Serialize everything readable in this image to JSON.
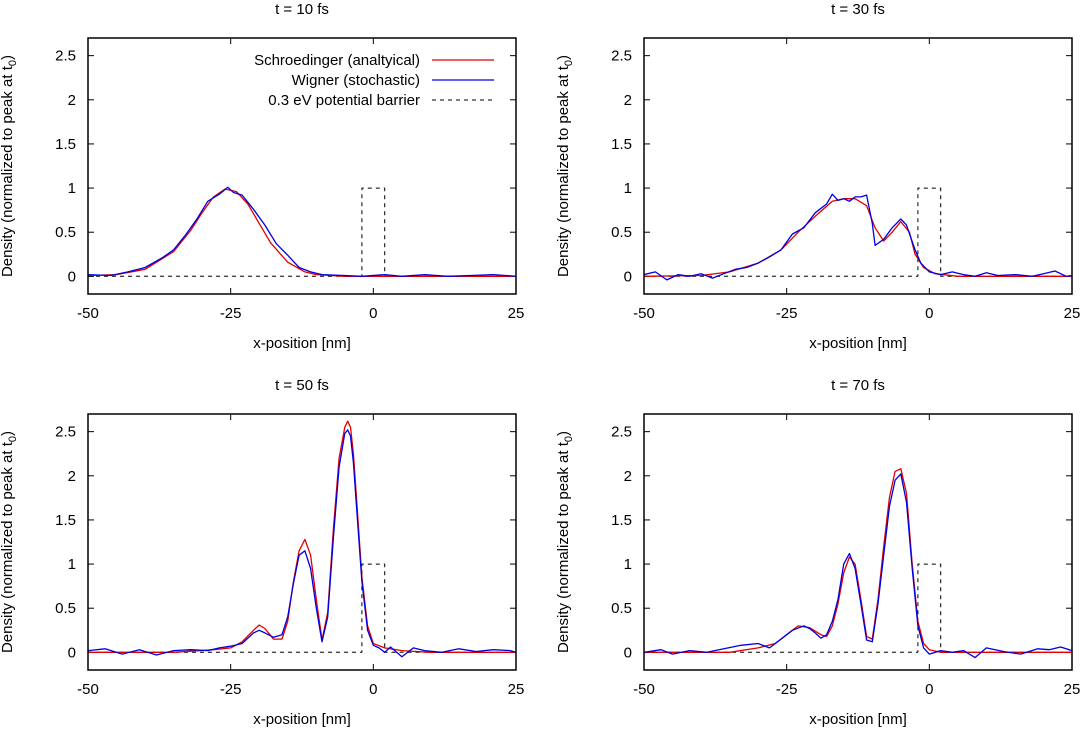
{
  "figure": {
    "xlabel": "x-position [nm]",
    "ylabel": "Density (normalized to peak at t",
    "ylabel_sub": "0",
    "ylabel_close": ")"
  },
  "colors": {
    "schroedinger": "#e00000",
    "wigner": "#0000e0",
    "barrier": "#000000",
    "axes": "#000000"
  },
  "chart_data": [
    {
      "type": "line",
      "title": "t = 10 fs",
      "xlabel": "x-position [nm]",
      "ylabel": "Density (normalized to peak at t0)",
      "xlim": [
        -50,
        25
      ],
      "ylim": [
        -0.2,
        2.7
      ],
      "xticks": [
        -50,
        -25,
        0,
        25
      ],
      "yticks": [
        0,
        0.5,
        1,
        1.5,
        2,
        2.5
      ],
      "grid": false,
      "legend_position": "top-right",
      "series": [
        {
          "name": "Schroedinger (analtyical)",
          "style": "solid",
          "x": [
            -50,
            -45,
            -40,
            -35,
            -32,
            -30,
            -28,
            -26,
            -24,
            -22,
            -20,
            -18,
            -15,
            -12,
            -10,
            -5,
            0,
            25
          ],
          "y": [
            0.01,
            0.02,
            0.08,
            0.28,
            0.52,
            0.72,
            0.9,
            0.99,
            0.96,
            0.82,
            0.6,
            0.38,
            0.16,
            0.05,
            0.02,
            0.0,
            0.0,
            0.0
          ]
        },
        {
          "name": "Wigner (stochastic)",
          "style": "solid",
          "x": [
            -50,
            -46,
            -43,
            -40,
            -37,
            -35,
            -33,
            -31,
            -29,
            -27,
            -25.5,
            -24.5,
            -23,
            -21,
            -19,
            -17,
            -15,
            -13,
            -11,
            -9,
            -5,
            -2,
            2,
            5,
            9,
            13,
            17,
            21,
            25
          ],
          "y": [
            0.02,
            0.01,
            0.05,
            0.1,
            0.21,
            0.3,
            0.46,
            0.64,
            0.85,
            0.93,
            1.01,
            0.95,
            0.92,
            0.76,
            0.58,
            0.37,
            0.24,
            0.1,
            0.05,
            0.02,
            0.01,
            0.0,
            0.02,
            0.0,
            0.02,
            0.0,
            0.01,
            0.02,
            0.0
          ]
        },
        {
          "name": "0.3 eV potential barrier",
          "style": "dashed",
          "x": [
            -50,
            -2,
            -2,
            2,
            2,
            25
          ],
          "y": [
            0,
            0,
            1,
            1,
            0,
            0
          ]
        }
      ]
    },
    {
      "type": "line",
      "title": "t = 30 fs",
      "xlabel": "x-position [nm]",
      "ylabel": "Density (normalized to peak at t0)",
      "xlim": [
        -50,
        25
      ],
      "ylim": [
        -0.2,
        2.7
      ],
      "xticks": [
        -50,
        -25,
        0,
        25
      ],
      "yticks": [
        0,
        0.5,
        1,
        1.5,
        2,
        2.5
      ],
      "grid": false,
      "series": [
        {
          "name": "Schroedinger (analtyical)",
          "style": "solid",
          "x": [
            -50,
            -40,
            -35,
            -30,
            -26,
            -23,
            -20,
            -17,
            -15,
            -13,
            -11,
            -9.5,
            -8,
            -6.5,
            -5,
            -3.5,
            -2.5,
            -1,
            1,
            5,
            10,
            25
          ],
          "y": [
            0.0,
            0.01,
            0.05,
            0.15,
            0.3,
            0.5,
            0.68,
            0.85,
            0.88,
            0.88,
            0.8,
            0.55,
            0.4,
            0.5,
            0.62,
            0.5,
            0.25,
            0.1,
            0.03,
            0.0,
            0.0,
            0.0
          ]
        },
        {
          "name": "Wigner (stochastic)",
          "style": "solid",
          "x": [
            -50,
            -48,
            -46,
            -44,
            -42,
            -40,
            -38,
            -36,
            -34,
            -32,
            -30,
            -28,
            -26,
            -24,
            -22,
            -20,
            -18,
            -17,
            -16,
            -15,
            -14,
            -13,
            -12,
            -11,
            -10,
            -9.5,
            -8,
            -6.5,
            -5,
            -4,
            -2.5,
            -1.5,
            0,
            2,
            4,
            6,
            8,
            10,
            12,
            15,
            18,
            20,
            22,
            24,
            25
          ],
          "y": [
            0.02,
            0.05,
            -0.04,
            0.02,
            0.0,
            0.03,
            -0.02,
            0.03,
            0.08,
            0.1,
            0.15,
            0.22,
            0.3,
            0.48,
            0.55,
            0.72,
            0.82,
            0.93,
            0.86,
            0.88,
            0.85,
            0.9,
            0.9,
            0.92,
            0.6,
            0.35,
            0.42,
            0.55,
            0.65,
            0.58,
            0.3,
            0.15,
            0.05,
            0.02,
            0.05,
            0.02,
            0.0,
            0.04,
            0.01,
            0.02,
            0.0,
            0.03,
            0.06,
            0.0,
            0.01
          ]
        },
        {
          "name": "0.3 eV potential barrier",
          "style": "dashed",
          "x": [
            -50,
            -2,
            -2,
            2,
            2,
            25
          ],
          "y": [
            0,
            0,
            1,
            1,
            0,
            0
          ]
        }
      ]
    },
    {
      "type": "line",
      "title": "t = 50 fs",
      "xlabel": "x-position [nm]",
      "ylabel": "Density (normalized to peak at t0)",
      "xlim": [
        -50,
        25
      ],
      "ylim": [
        -0.2,
        2.7
      ],
      "xticks": [
        -50,
        -25,
        0,
        25
      ],
      "yticks": [
        0,
        0.5,
        1,
        1.5,
        2,
        2.5
      ],
      "grid": false,
      "series": [
        {
          "name": "Schroedinger (analtyical)",
          "style": "solid",
          "x": [
            -50,
            -35,
            -28,
            -25,
            -23,
            -21,
            -20,
            -19,
            -17.5,
            -16,
            -15,
            -14,
            -13,
            -12,
            -11,
            -10,
            -9,
            -8,
            -7,
            -6,
            -5,
            -4.5,
            -4,
            -3.5,
            -3,
            -2,
            -1,
            0,
            2,
            5,
            10,
            25
          ],
          "y": [
            0.0,
            0.0,
            0.03,
            0.05,
            0.12,
            0.25,
            0.31,
            0.27,
            0.15,
            0.15,
            0.35,
            0.8,
            1.15,
            1.28,
            1.1,
            0.6,
            0.14,
            0.45,
            1.4,
            2.2,
            2.55,
            2.62,
            2.55,
            2.25,
            1.8,
            0.85,
            0.3,
            0.1,
            0.05,
            0.02,
            0.0,
            0.0
          ]
        },
        {
          "name": "Wigner (stochastic)",
          "style": "solid",
          "x": [
            -50,
            -47,
            -44,
            -41,
            -38,
            -35,
            -32,
            -29,
            -27,
            -25,
            -23,
            -21,
            -20,
            -19,
            -17.5,
            -16,
            -15,
            -14,
            -13,
            -12,
            -11,
            -10,
            -9,
            -8,
            -7,
            -6,
            -5,
            -4.5,
            -4,
            -3.5,
            -3,
            -2,
            -1,
            0,
            1,
            2,
            3,
            5,
            7,
            9,
            12,
            15,
            18,
            21,
            24,
            25
          ],
          "y": [
            0.02,
            0.04,
            -0.02,
            0.03,
            -0.03,
            0.02,
            0.03,
            0.02,
            0.05,
            0.07,
            0.1,
            0.22,
            0.25,
            0.22,
            0.17,
            0.2,
            0.4,
            0.78,
            1.1,
            1.15,
            0.95,
            0.5,
            0.12,
            0.4,
            1.3,
            2.1,
            2.48,
            2.52,
            2.45,
            2.15,
            1.7,
            0.8,
            0.25,
            0.08,
            0.05,
            0.0,
            0.06,
            -0.05,
            0.05,
            0.02,
            0.0,
            0.04,
            0.01,
            0.03,
            0.02,
            0.0
          ]
        },
        {
          "name": "0.3 eV potential barrier",
          "style": "dashed",
          "x": [
            -50,
            -2,
            -2,
            2,
            2,
            25
          ],
          "y": [
            0,
            0,
            1,
            1,
            0,
            0
          ]
        }
      ]
    },
    {
      "type": "line",
      "title": "t = 70 fs",
      "xlabel": "x-position [nm]",
      "ylabel": "Density (normalized to peak at t0)",
      "xlim": [
        -50,
        25
      ],
      "ylim": [
        -0.2,
        2.7
      ],
      "xticks": [
        -50,
        -25,
        0,
        25
      ],
      "yticks": [
        0,
        0.5,
        1,
        1.5,
        2,
        2.5
      ],
      "grid": false,
      "series": [
        {
          "name": "Schroedinger (analtyical)",
          "style": "solid",
          "x": [
            -50,
            -35,
            -30,
            -27,
            -25,
            -23,
            -21,
            -19,
            -18,
            -17,
            -16,
            -15,
            -14,
            -13,
            -12,
            -11,
            -10,
            -9,
            -8,
            -7,
            -6,
            -5,
            -4,
            -3,
            -2,
            -1,
            0,
            2,
            5,
            10,
            25
          ],
          "y": [
            0.0,
            0.0,
            0.05,
            0.1,
            0.2,
            0.3,
            0.28,
            0.2,
            0.18,
            0.3,
            0.55,
            0.9,
            1.08,
            1.0,
            0.6,
            0.18,
            0.15,
            0.6,
            1.2,
            1.75,
            2.05,
            2.08,
            1.8,
            1.0,
            0.35,
            0.1,
            0.03,
            0.0,
            0.0,
            0.0,
            0.0
          ]
        },
        {
          "name": "Wigner (stochastic)",
          "style": "solid",
          "x": [
            -50,
            -47,
            -45,
            -42,
            -39,
            -36,
            -33,
            -30,
            -28,
            -26,
            -24,
            -22,
            -21,
            -20,
            -19,
            -18,
            -17,
            -16,
            -15,
            -14,
            -13,
            -12,
            -11,
            -10,
            -9,
            -8,
            -7,
            -6,
            -5,
            -4,
            -3,
            -2,
            -1,
            0,
            2,
            4,
            6,
            8,
            10,
            13,
            16,
            19,
            21,
            23,
            25
          ],
          "y": [
            0.0,
            0.03,
            -0.02,
            0.02,
            0.0,
            0.04,
            0.08,
            0.1,
            0.05,
            0.15,
            0.25,
            0.3,
            0.27,
            0.22,
            0.16,
            0.2,
            0.35,
            0.6,
            1.0,
            1.12,
            0.95,
            0.55,
            0.14,
            0.12,
            0.55,
            1.1,
            1.65,
            1.95,
            2.02,
            1.7,
            0.95,
            0.3,
            0.05,
            -0.02,
            0.02,
            0.0,
            0.02,
            -0.06,
            0.05,
            0.01,
            -0.02,
            0.04,
            0.03,
            0.06,
            0.02
          ]
        },
        {
          "name": "0.3 eV potential barrier",
          "style": "dashed",
          "x": [
            -50,
            -2,
            -2,
            2,
            2,
            25
          ],
          "y": [
            0,
            0,
            1,
            1,
            0,
            0
          ]
        }
      ]
    }
  ]
}
